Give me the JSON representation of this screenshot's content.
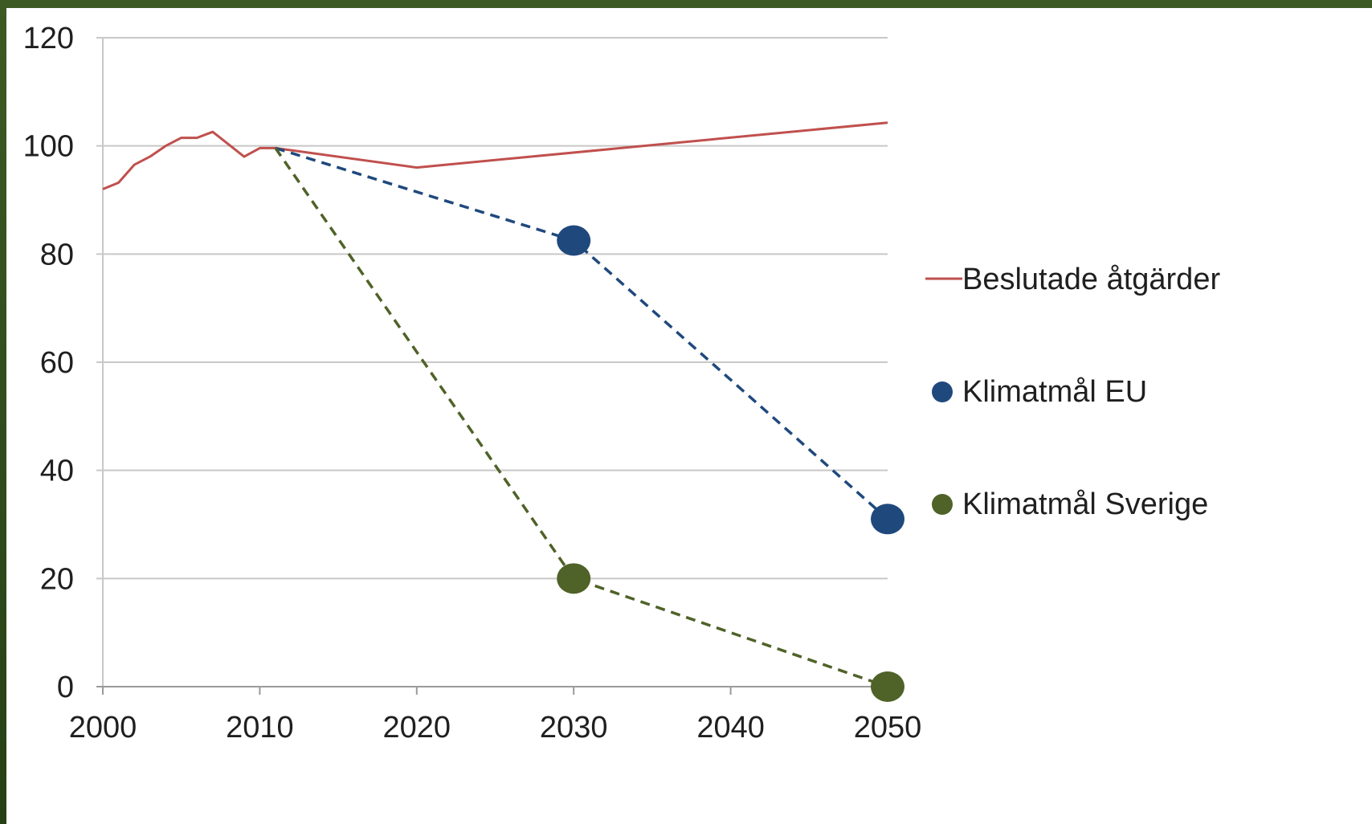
{
  "chart_data": {
    "type": "line",
    "title": "",
    "xlabel": "",
    "ylabel": "",
    "xlim": [
      2000,
      2050
    ],
    "ylim": [
      0,
      120
    ],
    "grid": "horizontal",
    "legend_position": "right",
    "x_ticks": [
      "2000",
      "2010",
      "2020",
      "2030",
      "2040",
      "2050"
    ],
    "y_ticks": [
      "0",
      "20",
      "40",
      "60",
      "80",
      "100",
      "120"
    ],
    "series": [
      {
        "name": "Beslutade åtgärder",
        "kind": "line",
        "color": "#c0504d",
        "x": [
          2000,
          2001,
          2002,
          2003,
          2004,
          2005,
          2006,
          2007,
          2008,
          2009,
          2010,
          2011,
          2020,
          2050
        ],
        "y": [
          92,
          93.2,
          96.5,
          98,
          100,
          101.5,
          101.5,
          102.6,
          100.3,
          98,
          99.6,
          99.6,
          96,
          104.3
        ]
      },
      {
        "name": "Klimatmål EU",
        "kind": "dashed-markers",
        "color": "#1f497d",
        "x": [
          2011,
          2030,
          2050
        ],
        "y": [
          99.6,
          82.5,
          31
        ],
        "markers_at": [
          2030,
          2050
        ]
      },
      {
        "name": "Klimatmål Sverige",
        "kind": "dashed-markers",
        "color": "#4f6228",
        "x": [
          2011,
          2030,
          2050
        ],
        "y": [
          99.6,
          20,
          0
        ],
        "markers_at": [
          2030,
          2050
        ]
      }
    ]
  }
}
